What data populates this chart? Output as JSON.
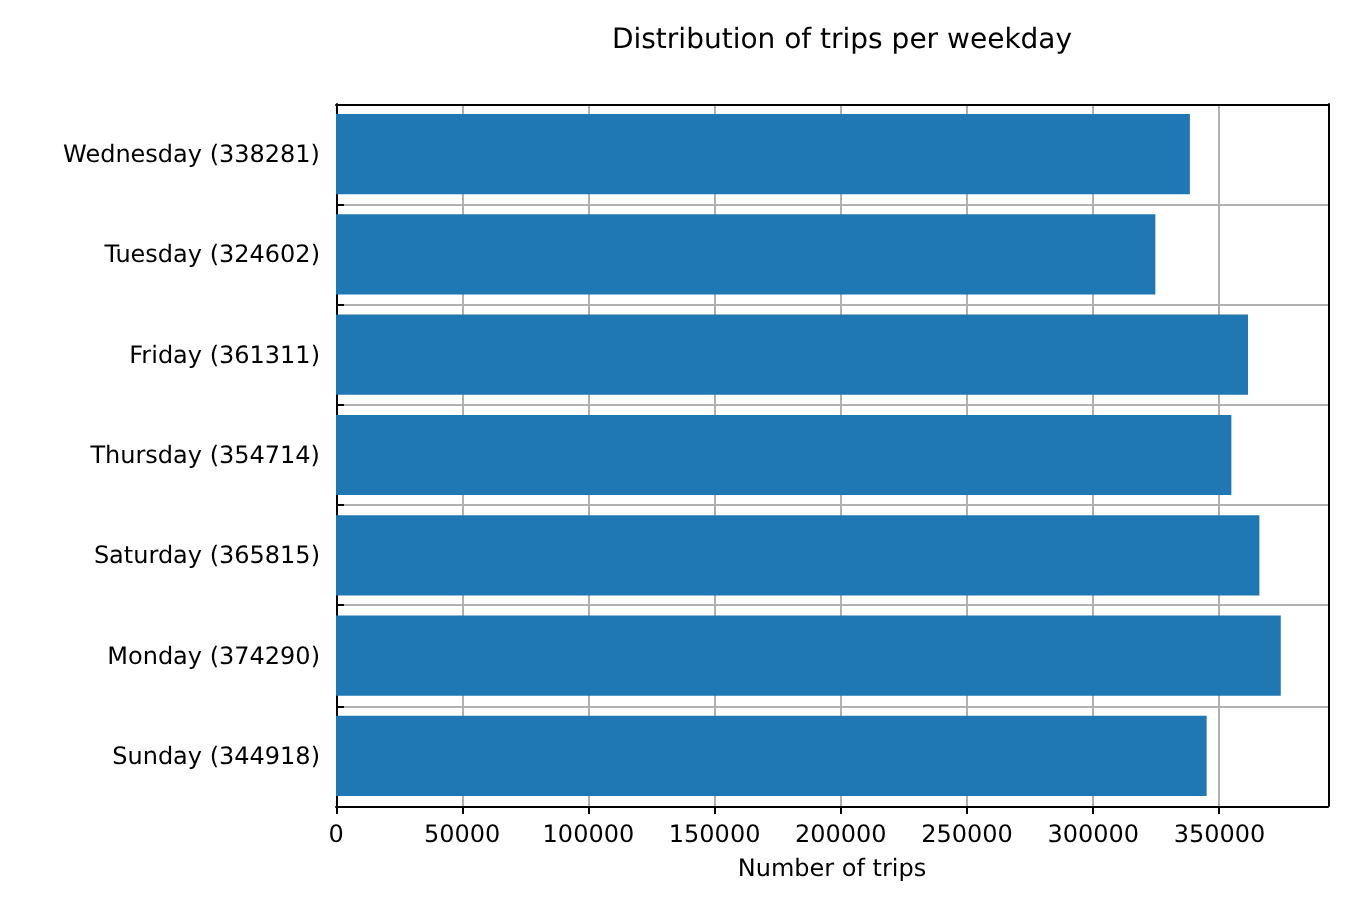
{
  "chart_data": {
    "type": "bar",
    "orientation": "horizontal",
    "title": "Distribution of trips per weekday",
    "xlabel": "Number of trips",
    "categories": [
      "Wednesday (338281)",
      "Tuesday (324602)",
      "Friday (361311)",
      "Thursday (354714)",
      "Saturday (365815)",
      "Monday (374290)",
      "Sunday (344918)"
    ],
    "values": [
      338281,
      324602,
      361311,
      354714,
      365815,
      374290,
      344918
    ],
    "color": "#1f77b4",
    "xlim": [
      0,
      393000
    ],
    "xticks": [
      0,
      50000,
      100000,
      150000,
      200000,
      250000,
      300000,
      350000
    ],
    "grid": true
  }
}
